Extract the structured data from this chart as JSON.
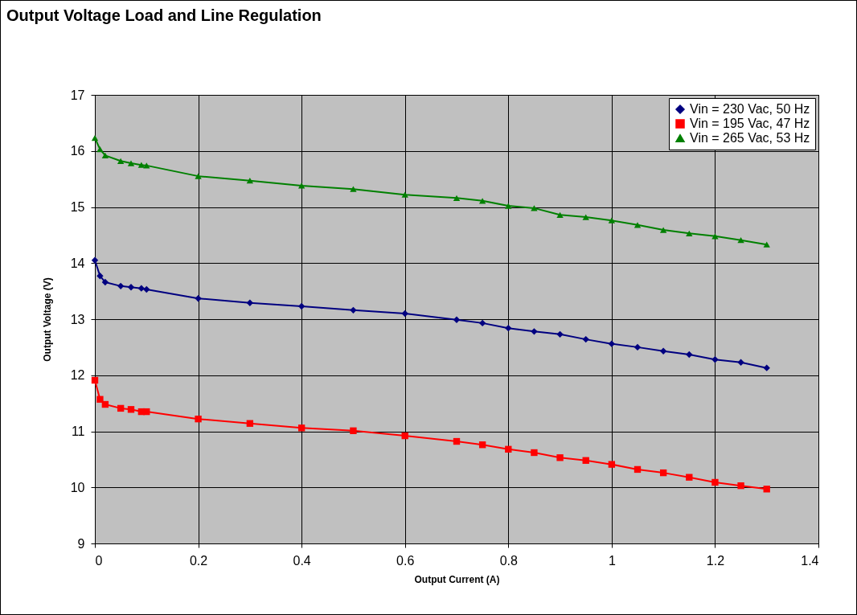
{
  "chart_data": {
    "type": "line",
    "title": "Output Voltage Load and Line Regulation",
    "xlabel": "Output Current (A)",
    "ylabel": "Output Voltage (V)",
    "x": [
      0,
      0.01,
      0.02,
      0.05,
      0.07,
      0.09,
      0.1,
      0.2,
      0.3,
      0.4,
      0.5,
      0.6,
      0.7,
      0.75,
      0.8,
      0.85,
      0.9,
      0.95,
      1.0,
      1.05,
      1.1,
      1.15,
      1.2,
      1.25,
      1.3
    ],
    "series": [
      {
        "name": "Vin = 230 Vac, 50 Hz",
        "color": "#000080",
        "marker": "diamond",
        "values": [
          14.05,
          13.77,
          13.66,
          13.59,
          13.57,
          13.55,
          13.53,
          13.37,
          13.29,
          13.23,
          13.16,
          13.1,
          12.99,
          12.93,
          12.84,
          12.78,
          12.73,
          12.64,
          12.56,
          12.5,
          12.43,
          12.37,
          12.28,
          12.23,
          12.13
        ]
      },
      {
        "name": "Vin = 195 Vac, 47 Hz",
        "color": "#ff0000",
        "marker": "square",
        "values": [
          11.91,
          11.57,
          11.48,
          11.41,
          11.39,
          11.35,
          11.35,
          11.22,
          11.14,
          11.06,
          11.01,
          10.92,
          10.82,
          10.76,
          10.68,
          10.62,
          10.53,
          10.48,
          10.41,
          10.32,
          10.26,
          10.18,
          10.09,
          10.03,
          9.97
        ]
      },
      {
        "name": "Vin = 265 Vac, 53 Hz",
        "color": "#008000",
        "marker": "triangle",
        "values": [
          16.23,
          16.03,
          15.92,
          15.82,
          15.78,
          15.75,
          15.74,
          15.55,
          15.47,
          15.38,
          15.32,
          15.22,
          15.16,
          15.11,
          15.02,
          14.98,
          14.86,
          14.82,
          14.76,
          14.68,
          14.59,
          14.53,
          14.48,
          14.41,
          14.33
        ]
      }
    ],
    "xlim": [
      0,
      1.4
    ],
    "xticks": [
      0,
      0.2,
      0.4,
      0.6,
      0.8,
      1,
      1.2,
      1.4
    ],
    "ylim": [
      9,
      17
    ],
    "yticks": [
      9,
      10,
      11,
      12,
      13,
      14,
      15,
      16,
      17
    ],
    "grid": true,
    "legend": "top right"
  }
}
